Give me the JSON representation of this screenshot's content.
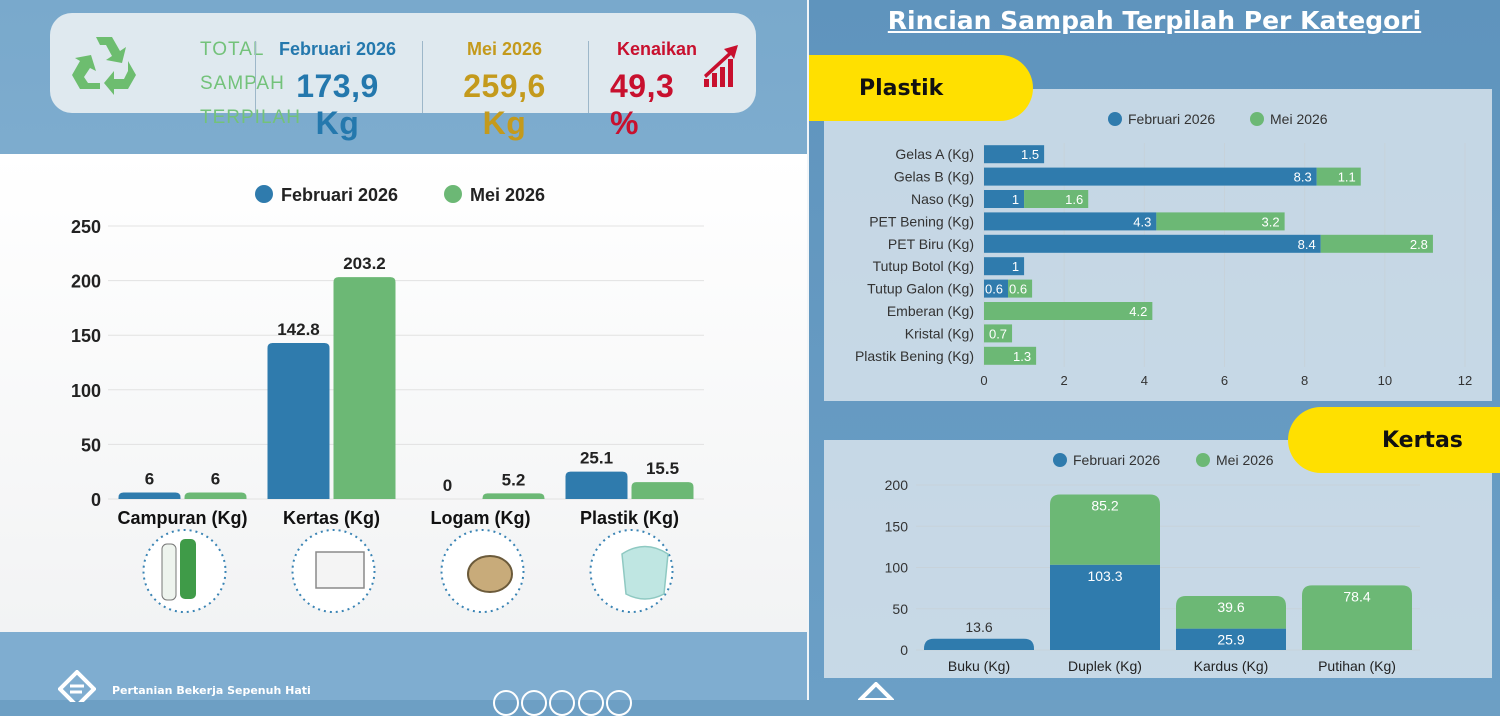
{
  "kpi": {
    "total_line1": "TOTAL",
    "total_line2": "SAMPAH",
    "total_line3": "TERPILAH",
    "feb_label": "Februari 2026",
    "feb_value": "173,9 Kg",
    "may_label": "Mei 2026",
    "may_value": "259,6 Kg",
    "increase_label": "Kenaikan",
    "increase_value": "49,3 %"
  },
  "colors": {
    "feb": "#2f7bad",
    "may": "#6cb875",
    "total_green": "#73c27a",
    "feb_text": "#2478ad",
    "may_text": "#c49a1c",
    "increase_text": "#c8102e",
    "highlight": "#ffe000"
  },
  "footer": {
    "org": "Pertanian Bekerja Sepenuh Hati"
  },
  "right": {
    "title": "Rincian Sampah Terpilah Per Kategori",
    "plastik_tag": "Plastik",
    "kertas_tag": "Kertas"
  },
  "icons": [
    "recycle-icon",
    "rising-chart-icon",
    "bottles-icon",
    "paper-stack-icon",
    "metal-cans-icon",
    "plastic-bag-icon",
    "instagram-icon",
    "facebook-icon",
    "x-icon",
    "youtube-icon",
    "tiktok-icon"
  ],
  "chart_data": [
    {
      "type": "bar",
      "categories": [
        "Campuran (Kg)",
        "Kertas (Kg)",
        "Logam (Kg)",
        "Plastik (Kg)"
      ],
      "series": [
        {
          "name": "Februari 2026",
          "values": [
            6,
            142.8,
            0,
            25.1
          ]
        },
        {
          "name": "Mei 2026",
          "values": [
            6,
            203.2,
            5.2,
            15.5
          ]
        }
      ],
      "yticks": [
        0,
        50,
        100,
        150,
        200,
        250
      ],
      "ylim": [
        0,
        250
      ],
      "legend": "top-center",
      "grid": true
    },
    {
      "type": "bar",
      "orientation": "horizontal",
      "stacked": true,
      "categories": [
        "Gelas A (Kg)",
        "Gelas B (Kg)",
        "Naso (Kg)",
        "PET Bening (Kg)",
        "PET Biru (Kg)",
        "Tutup Botol (Kg)",
        "Tutup Galon (Kg)",
        "Emberan (Kg)",
        "Kristal (Kg)",
        "Plastik Bening (Kg)"
      ],
      "series": [
        {
          "name": "Februari 2026",
          "values": [
            1.5,
            8.3,
            1,
            4.3,
            8.4,
            1,
            0.6,
            0,
            0,
            0
          ]
        },
        {
          "name": "Mei 2026",
          "values": [
            0,
            1.1,
            1.6,
            3.2,
            2.8,
            0,
            0.6,
            4.2,
            0.7,
            1.3
          ]
        }
      ],
      "xticks": [
        0,
        2,
        4,
        6,
        8,
        10,
        12
      ],
      "xlim": [
        0,
        12
      ],
      "legend": "top-center",
      "grid": true
    },
    {
      "type": "bar",
      "stacked": true,
      "categories": [
        "Buku (Kg)",
        "Duplek (Kg)",
        "Kardus (Kg)",
        "Putihan (Kg)"
      ],
      "series": [
        {
          "name": "Februari 2026",
          "values": [
            13.6,
            103.3,
            25.9,
            0
          ]
        },
        {
          "name": "Mei 2026",
          "values": [
            0,
            85.2,
            39.6,
            78.4
          ]
        }
      ],
      "yticks": [
        0,
        50,
        100,
        150,
        200
      ],
      "ylim": [
        0,
        200
      ],
      "legend": "top-center",
      "grid": true
    }
  ]
}
